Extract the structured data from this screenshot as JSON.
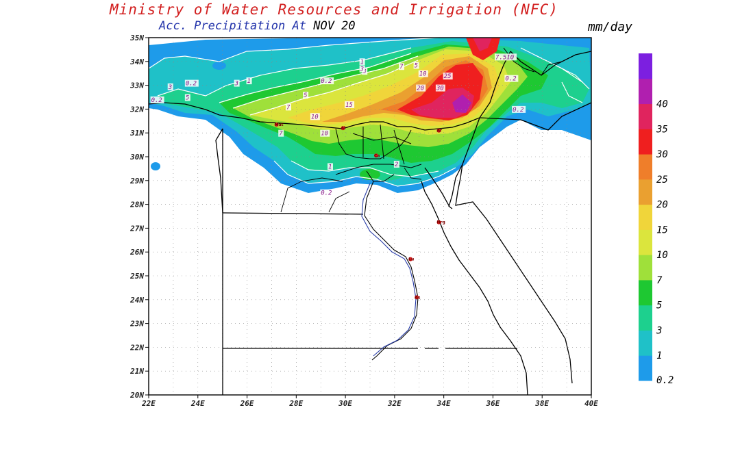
{
  "header": {
    "title": "Ministry of Water Resources and Irrigation (NFC)",
    "subtitle_prefix": "Acc. Precipitation",
    "subtitle_at": "At",
    "subtitle_date": "NOV 20",
    "units": "mm/day"
  },
  "colors": {
    "title": "#d21f1f",
    "subtitle": "#2233aa",
    "date": "#000000"
  },
  "axes": {
    "lat_labels": [
      "35N",
      "34N",
      "33N",
      "32N",
      "31N",
      "30N",
      "29N",
      "28N",
      "27N",
      "26N",
      "25N",
      "24N",
      "23N",
      "22N",
      "21N",
      "20N"
    ],
    "lon_labels": [
      "22E",
      "24E",
      "26E",
      "28E",
      "30E",
      "32E",
      "34E",
      "36E",
      "38E",
      "40E"
    ]
  },
  "legend": {
    "levels": [
      {
        "label": "0.2",
        "color": "#1e9bea"
      },
      {
        "label": "1",
        "color": "#1fc1c8"
      },
      {
        "label": "3",
        "color": "#1dd08e"
      },
      {
        "label": "5",
        "color": "#1ec832"
      },
      {
        "label": "7",
        "color": "#9fe03a"
      },
      {
        "label": "10",
        "color": "#dbe53d"
      },
      {
        "label": "15",
        "color": "#f0d53a"
      },
      {
        "label": "20",
        "color": "#eaa030"
      },
      {
        "label": "25",
        "color": "#ef7e2a"
      },
      {
        "label": "30",
        "color": "#ef1f1f"
      },
      {
        "label": "35",
        "color": "#e0245e"
      },
      {
        "label": "40",
        "color": "#b01faf"
      },
      {
        "label": "",
        "color": "#7c1fe0"
      }
    ]
  },
  "contour_labels": [
    {
      "text": "0.2",
      "lon": 23.5,
      "lat": 33.0
    },
    {
      "text": "3",
      "lon": 22.8,
      "lat": 32.85
    },
    {
      "text": "5",
      "lon": 23.5,
      "lat": 32.4
    },
    {
      "text": "3",
      "lon": 25.5,
      "lat": 33.0
    },
    {
      "text": "1",
      "lon": 26.0,
      "lat": 33.1
    },
    {
      "text": "0.2",
      "lon": 29.0,
      "lat": 33.1
    },
    {
      "text": "5",
      "lon": 28.3,
      "lat": 32.5
    },
    {
      "text": "7",
      "lon": 27.6,
      "lat": 32.0
    },
    {
      "text": "10",
      "lon": 28.6,
      "lat": 31.6
    },
    {
      "text": "15",
      "lon": 30.0,
      "lat": 32.1
    },
    {
      "text": "1",
      "lon": 30.6,
      "lat": 33.9
    },
    {
      "text": "3",
      "lon": 30.7,
      "lat": 33.5
    },
    {
      "text": "3",
      "lon": 30.6,
      "lat": 33.6
    },
    {
      "text": "7",
      "lon": 32.2,
      "lat": 33.7
    },
    {
      "text": "5",
      "lon": 32.8,
      "lat": 33.75
    },
    {
      "text": "10",
      "lon": 33.0,
      "lat": 33.4
    },
    {
      "text": "20",
      "lon": 32.9,
      "lat": 32.8
    },
    {
      "text": "25",
      "lon": 34.0,
      "lat": 33.3
    },
    {
      "text": "30",
      "lon": 33.7,
      "lat": 32.8
    },
    {
      "text": "7",
      "lon": 27.3,
      "lat": 30.9
    },
    {
      "text": "10",
      "lon": 29.0,
      "lat": 30.9
    },
    {
      "text": "1",
      "lon": 29.3,
      "lat": 29.5
    },
    {
      "text": "0.2",
      "lon": 29.0,
      "lat": 28.4
    },
    {
      "text": "2",
      "lon": 32.0,
      "lat": 29.6
    },
    {
      "text": "0.2",
      "lon": 36.5,
      "lat": 33.2
    },
    {
      "text": "7.510",
      "lon": 36.1,
      "lat": 34.1
    },
    {
      "text": "0.2",
      "lon": 36.8,
      "lat": 31.9
    },
    {
      "text": "0.2",
      "lon": 22.1,
      "lat": 32.3
    }
  ],
  "city_labels": [
    {
      "text": "Mat",
      "lon": 27.2,
      "lat": 31.35
    },
    {
      "text": "Al",
      "lon": 29.9,
      "lat": 31.2
    },
    {
      "text": "Ca",
      "lon": 31.25,
      "lat": 30.05
    },
    {
      "text": "Ar",
      "lon": 33.8,
      "lat": 31.1
    },
    {
      "text": "Hrg",
      "lon": 33.8,
      "lat": 27.25
    },
    {
      "text": "Lu",
      "lon": 32.65,
      "lat": 25.7
    },
    {
      "text": "As",
      "lon": 32.9,
      "lat": 24.1
    }
  ]
}
